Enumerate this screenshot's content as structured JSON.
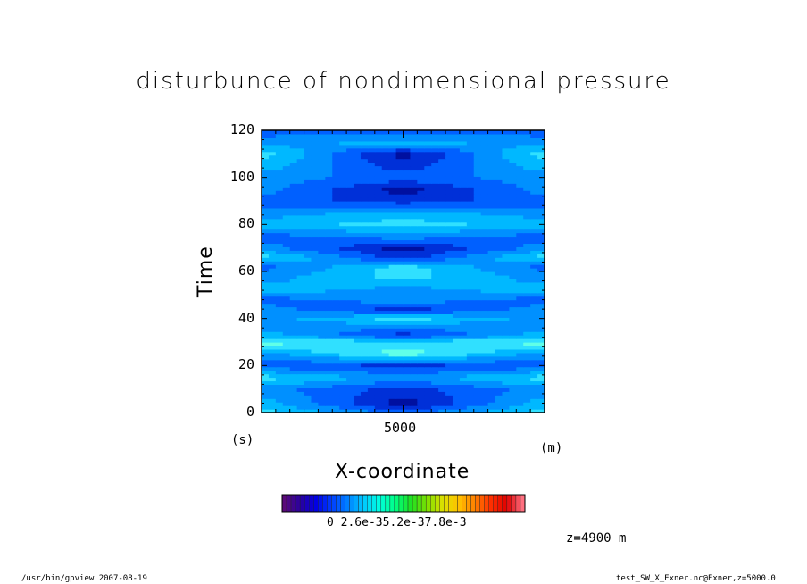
{
  "chart_data": {
    "type": "heatmap",
    "title": "disturbunce of nondimensional pressure",
    "xlabel": "X-coordinate",
    "ylabel": "Time",
    "x_unit": "(m)",
    "y_unit": "(s)",
    "xlim": [
      0,
      10000
    ],
    "ylim": [
      0,
      120
    ],
    "x_tick_labels": [
      "5000"
    ],
    "y_tick_labels": [
      "0",
      "20",
      "40",
      "60",
      "80",
      "100",
      "120"
    ],
    "colorbar": {
      "tick_labels": [
        "0",
        "2.6e-3",
        "5.2e-3",
        "7.8e-3"
      ],
      "printed_text": "0  2.6e-35.2e-37.8e-3",
      "colors": [
        "#5a0a7a",
        "#2a00a0",
        "#0000e6",
        "#0040ff",
        "#0080ff",
        "#00c8ff",
        "#00ffe0",
        "#00ff80",
        "#20e020",
        "#80e000",
        "#e0e000",
        "#ffc000",
        "#ff8000",
        "#ff3000",
        "#e00000",
        "#ff7080"
      ]
    },
    "bands": [
      {
        "t": 0,
        "center": 2,
        "edge": 5
      },
      {
        "t": 4,
        "center": 0,
        "edge": 4
      },
      {
        "t": 10,
        "center": 1,
        "edge": 3
      },
      {
        "t": 15,
        "center": 3,
        "edge": 5
      },
      {
        "t": 20,
        "center": 1,
        "edge": 2
      },
      {
        "t": 25,
        "center": 6,
        "edge": 3
      },
      {
        "t": 30,
        "center": 5,
        "edge": 6
      },
      {
        "t": 33,
        "center": 1,
        "edge": 4
      },
      {
        "t": 37,
        "center": 3,
        "edge": 3
      },
      {
        "t": 40,
        "center": 5,
        "edge": 3
      },
      {
        "t": 44,
        "center": 1,
        "edge": 3
      },
      {
        "t": 48,
        "center": 3,
        "edge": 2
      },
      {
        "t": 52,
        "center": 3,
        "edge": 4
      },
      {
        "t": 58,
        "center": 5,
        "edge": 3
      },
      {
        "t": 62,
        "center": 5,
        "edge": 2
      },
      {
        "t": 66,
        "center": 1,
        "edge": 5
      },
      {
        "t": 70,
        "center": 0,
        "edge": 3
      },
      {
        "t": 75,
        "center": 3,
        "edge": 2
      },
      {
        "t": 80,
        "center": 5,
        "edge": 4
      },
      {
        "t": 85,
        "center": 4,
        "edge": 3
      },
      {
        "t": 90,
        "center": 1,
        "edge": 2
      },
      {
        "t": 95,
        "center": 0,
        "edge": 3
      },
      {
        "t": 100,
        "center": 2,
        "edge": 3
      },
      {
        "t": 105,
        "center": 1,
        "edge": 4
      },
      {
        "t": 110,
        "center": 0,
        "edge": 5
      },
      {
        "t": 115,
        "center": 4,
        "edge": 3
      },
      {
        "t": 120,
        "center": 2,
        "edge": 2
      }
    ]
  },
  "annotation": "z=4900 m",
  "footer_left": "/usr/bin/gpview   2007-08-19",
  "footer_right": "test_SW_X_Exner.nc@Exner,z=5000.0"
}
